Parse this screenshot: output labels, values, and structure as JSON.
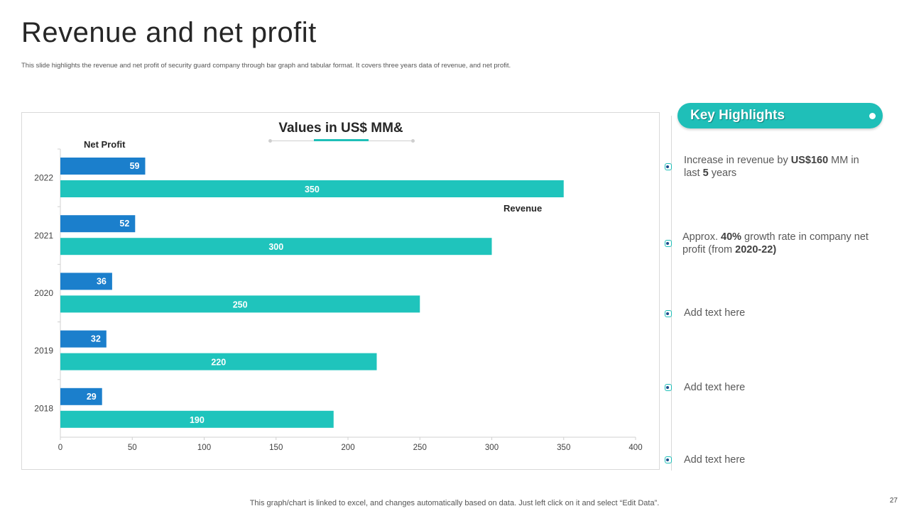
{
  "page": {
    "title": "Revenue and net profit",
    "subtitle": "This slide highlights the revenue and net profit of security guard company through bar graph and tabular format. It covers three years data of revenue, and net profit.",
    "footer": "This graph/chart is linked to excel,  and changes automatically based on data. Just left click on it and select “Edit Data”.",
    "page_number": "27"
  },
  "chart_data": {
    "type": "bar",
    "orientation": "horizontal",
    "title": "Values in US$ MM&",
    "categories": [
      "2022",
      "2021",
      "2020",
      "2019",
      "2018"
    ],
    "series": [
      {
        "name": "Net Profit",
        "values": [
          59,
          52,
          36,
          32,
          29
        ],
        "color": "#1b7fcc"
      },
      {
        "name": "Revenue",
        "values": [
          350,
          300,
          250,
          220,
          190
        ],
        "color": "#1fc4bc"
      }
    ],
    "xlim": [
      0,
      400
    ],
    "x_ticks": [
      0,
      50,
      100,
      150,
      200,
      250,
      300,
      350,
      400
    ],
    "grid": false,
    "legend": "inline labels"
  },
  "highlights": {
    "heading": "Key Highlights",
    "accent_color": "#1fbfb8",
    "items": [
      {
        "pre": "Increase in revenue by ",
        "b1": "US$160",
        "mid": " MM  in last ",
        "b2": "5",
        "post": " years"
      },
      {
        "pre": "Approx. ",
        "b1": "40%",
        "mid": " growth rate in company net profit (from ",
        "b2": "2020-22)",
        "post": ""
      },
      {
        "pre": "Add text here",
        "b1": "",
        "mid": "",
        "b2": "",
        "post": ""
      },
      {
        "pre": "Add text here",
        "b1": "",
        "mid": "",
        "b2": "",
        "post": ""
      },
      {
        "pre": "Add text here",
        "b1": "",
        "mid": "",
        "b2": "",
        "post": ""
      }
    ]
  }
}
